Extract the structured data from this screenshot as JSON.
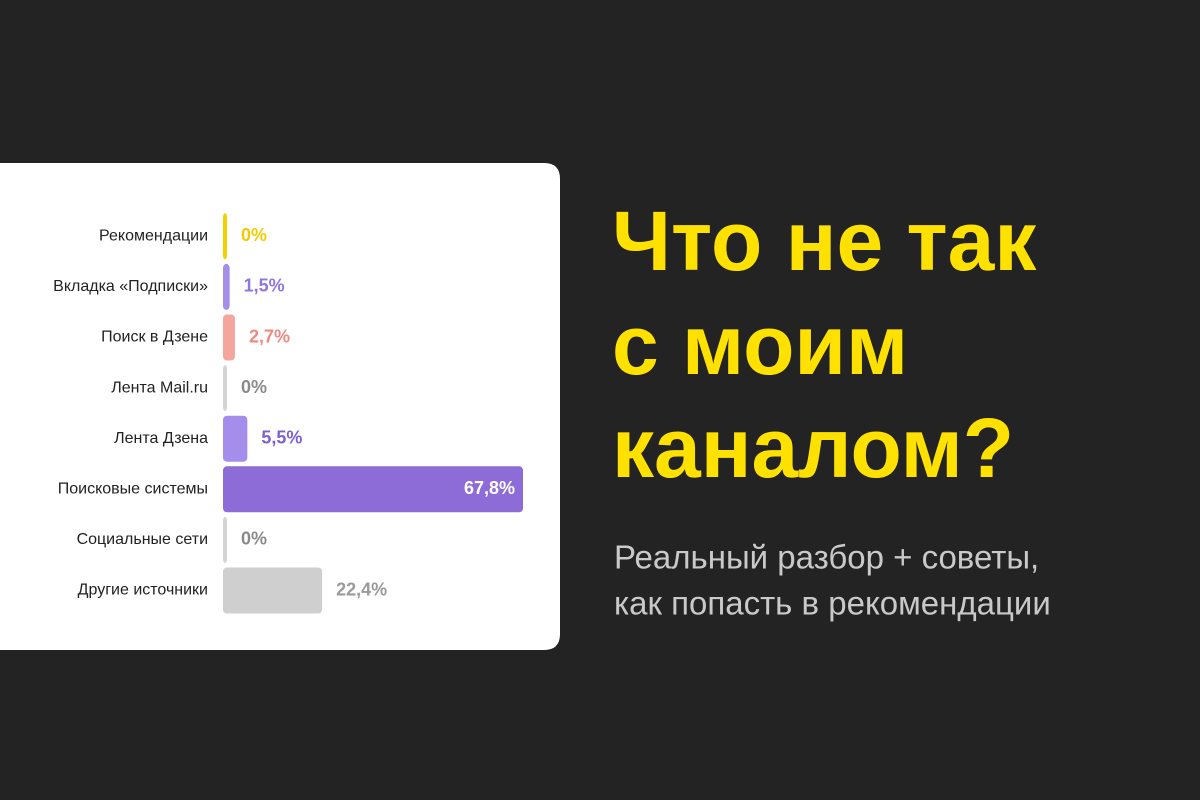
{
  "chart_data": {
    "type": "hbar",
    "categories": [
      "Рекомендации",
      "Вкладка «Подписки»",
      "Поиск в Дзене",
      "Лента Mail.ru",
      "Лента Дзена",
      "Поисковые системы",
      "Социальные сети",
      "Другие источники"
    ],
    "values": [
      0,
      1.5,
      2.7,
      0,
      5.5,
      67.8,
      0,
      22.4
    ],
    "value_labels": [
      "0%",
      "1,5%",
      "2,7%",
      "0%",
      "5,5%",
      "67,8%",
      "0%",
      "22,4%"
    ],
    "colors": [
      "#f5d000",
      "#a58ee8",
      "#f5a69c",
      "#d4d4d4",
      "#a48deb",
      "#8e6cd8",
      "#d4d4d4",
      "#cfcfcf"
    ],
    "label_colors": [
      "#f2cc00",
      "#8f76dc",
      "#ec8a80",
      "#8a8a8a",
      "#7e5fd2",
      "#ffffff",
      "#8a8a8a",
      "#9a9a9a"
    ]
  },
  "headline": [
    "Что не так",
    "с моим",
    "каналом?"
  ],
  "subtitle": [
    "Реальный разбор + советы,",
    "как попасть в рекомендации"
  ]
}
